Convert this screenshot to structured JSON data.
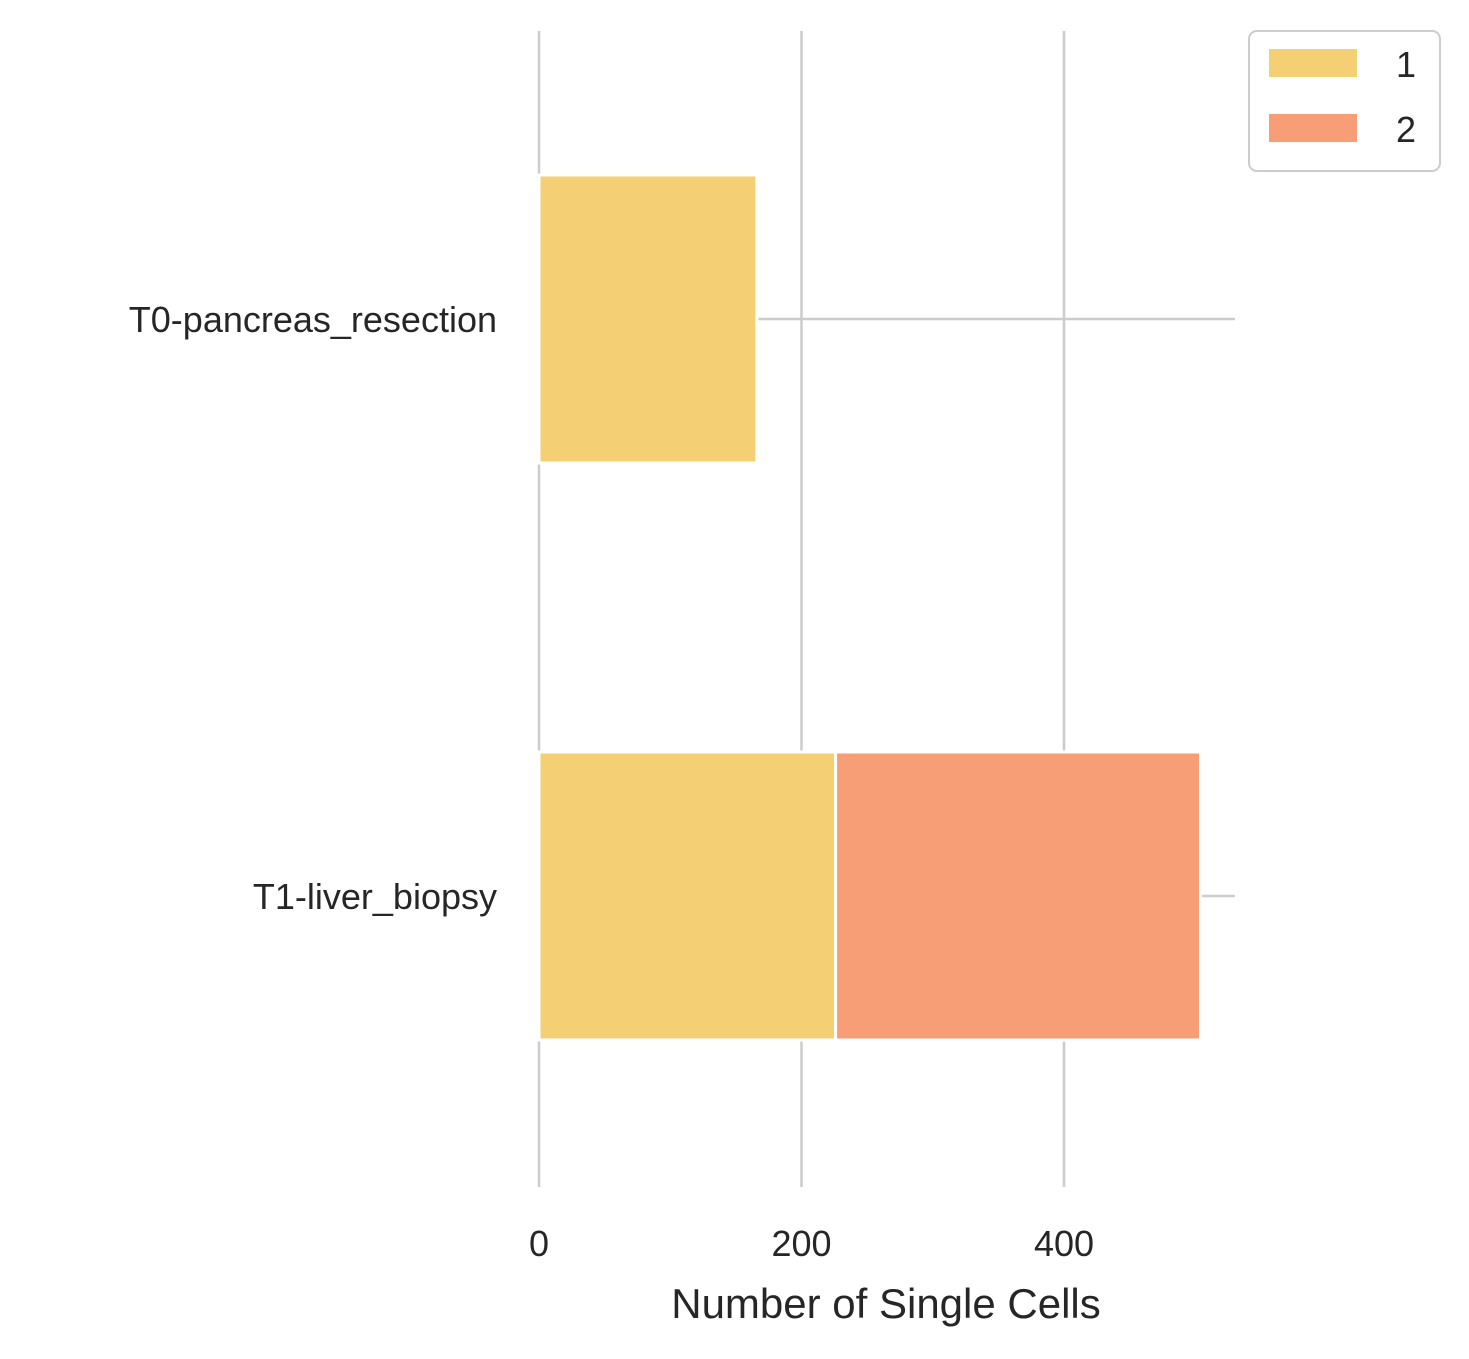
{
  "chart_data": {
    "type": "bar",
    "orientation": "horizontal",
    "stacked": true,
    "categories": [
      "T0-pancreas_resection",
      "T1-liver_biopsy"
    ],
    "series": [
      {
        "name": "1",
        "values": [
          166,
          226
        ],
        "color": "#f5cf74"
      },
      {
        "name": "2",
        "values": [
          0,
          278
        ],
        "color": "#f89e77"
      }
    ],
    "xlabel": "Number of Single Cells",
    "ylabel": "",
    "xticks": [
      0,
      200,
      400
    ],
    "xlim": [
      0,
      530
    ],
    "grid": true,
    "legend_position": "top-right outside"
  }
}
